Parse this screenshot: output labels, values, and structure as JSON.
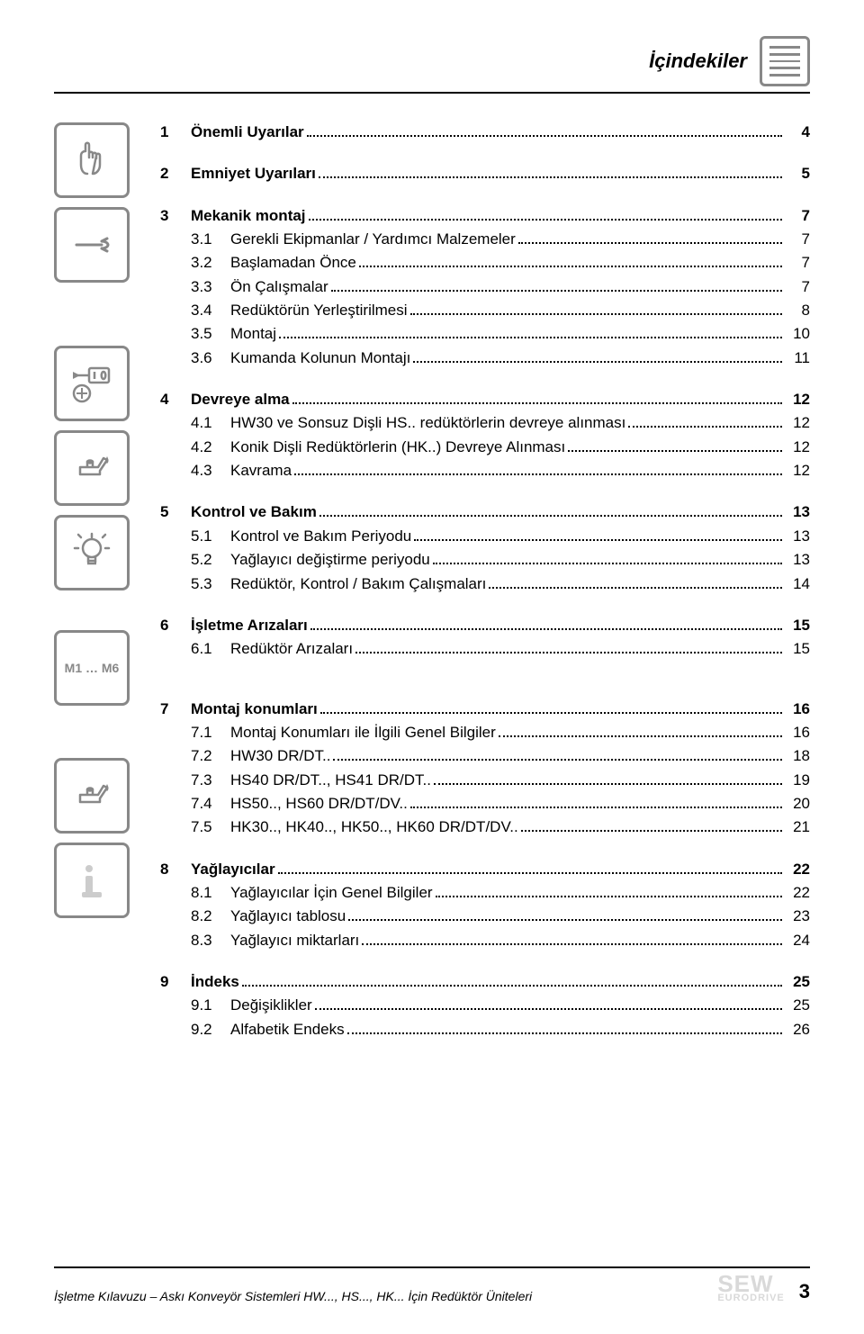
{
  "page_title": "İçindekiler",
  "sections": [
    {
      "num": "1",
      "title": "Önemli Uyarılar",
      "page": "4",
      "subs": []
    },
    {
      "num": "2",
      "title": "Emniyet Uyarıları",
      "page": "5",
      "subs": []
    },
    {
      "num": "3",
      "title": "Mekanik montaj",
      "page": "7",
      "subs": [
        {
          "num": "3.1",
          "title": "Gerekli Ekipmanlar / Yardımcı Malzemeler",
          "page": "7"
        },
        {
          "num": "3.2",
          "title": "Başlamadan Önce",
          "page": "7"
        },
        {
          "num": "3.3",
          "title": "Ön Çalışmalar",
          "page": "7"
        },
        {
          "num": "3.4",
          "title": "Redüktörün Yerleştirilmesi",
          "page": "8"
        },
        {
          "num": "3.5",
          "title": "Montaj",
          "page": "10"
        },
        {
          "num": "3.6",
          "title": "Kumanda Kolunun Montajı",
          "page": "11"
        }
      ]
    },
    {
      "num": "4",
      "title": "Devreye alma",
      "page": "12",
      "subs": [
        {
          "num": "4.1",
          "title": "HW30 ve Sonsuz Dişli HS.. redüktörlerin devreye alınması",
          "page": "12"
        },
        {
          "num": "4.2",
          "title": "Konik Dişli Redüktörlerin (HK..) Devreye Alınması",
          "page": "12"
        },
        {
          "num": "4.3",
          "title": "Kavrama",
          "page": "12"
        }
      ]
    },
    {
      "num": "5",
      "title": "Kontrol ve Bakım",
      "page": "13",
      "subs": [
        {
          "num": "5.1",
          "title": "Kontrol ve Bakım Periyodu",
          "page": "13"
        },
        {
          "num": "5.2",
          "title": "Yağlayıcı değiştirme periyodu",
          "page": "13"
        },
        {
          "num": "5.3",
          "title": "Redüktör, Kontrol / Bakım Çalışmaları",
          "page": "14"
        }
      ]
    },
    {
      "num": "6",
      "title": "İşletme Arızaları",
      "page": "15",
      "subs": [
        {
          "num": "6.1",
          "title": "Redüktör Arızaları",
          "page": "15"
        }
      ]
    }
  ],
  "sections2": [
    {
      "num": "7",
      "title": "Montaj konumları",
      "page": "16",
      "subs": [
        {
          "num": "7.1",
          "title": "Montaj Konumları ile İlgili Genel Bilgiler",
          "page": "16"
        },
        {
          "num": "7.2",
          "title": "HW30 DR/DT..",
          "page": "18"
        },
        {
          "num": "7.3",
          "title": "HS40 DR/DT.., HS41 DR/DT..",
          "page": "19"
        },
        {
          "num": "7.4",
          "title": "HS50.., HS60 DR/DT/DV..",
          "page": "20"
        },
        {
          "num": "7.5",
          "title": "HK30.., HK40.., HK50.., HK60 DR/DT/DV..",
          "page": "21"
        }
      ]
    },
    {
      "num": "8",
      "title": "Yağlayıcılar",
      "page": "22",
      "subs": [
        {
          "num": "8.1",
          "title": "Yağlayıcılar İçin Genel Bilgiler",
          "page": "22"
        },
        {
          "num": "8.2",
          "title": "Yağlayıcı tablosu",
          "page": "23"
        },
        {
          "num": "8.3",
          "title": "Yağlayıcı miktarları",
          "page": "24"
        }
      ]
    },
    {
      "num": "9",
      "title": "İndeks",
      "page": "25",
      "subs": [
        {
          "num": "9.1",
          "title": "Değişiklikler",
          "page": "25"
        },
        {
          "num": "9.2",
          "title": "Alfabetik Endeks",
          "page": "26"
        }
      ]
    }
  ],
  "icon_m_label": "M1 … M6",
  "footer_text": "İşletme Kılavuzu – Askı Konveyör Sistemleri HW..., HS..., HK... İçin Redüktör Üniteleri",
  "logo_top": "SEW",
  "logo_bottom": "EURODRIVE",
  "page_number": "3",
  "colors": {
    "text": "#000000",
    "icon_border": "#888888",
    "logo": "#d9d9d9",
    "background": "#ffffff"
  },
  "typography": {
    "title_fontsize": 22,
    "row_fontsize": 17,
    "footer_fontsize": 14,
    "pagenum_fontsize": 22,
    "font_family": "Arial"
  }
}
